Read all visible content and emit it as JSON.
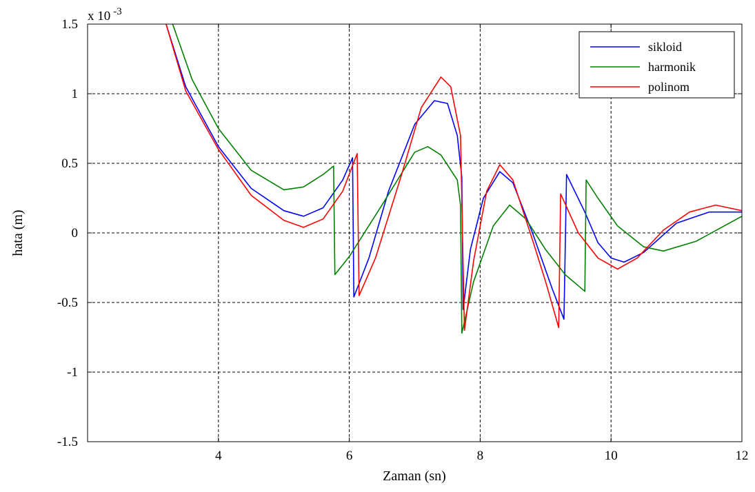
{
  "chart_data": {
    "type": "line",
    "title": "",
    "xlabel": "Zaman (sn)",
    "ylabel": "hata (m)",
    "exponent_label": "x 10",
    "exponent_power": "-3",
    "xlim": [
      2,
      12
    ],
    "ylim": [
      -1.5,
      1.5
    ],
    "grid": true,
    "legend_position": "top-right",
    "x_ticks": [
      4,
      6,
      8,
      10,
      12
    ],
    "x_tick_labels": [
      "4",
      "6",
      "8",
      "10",
      "12"
    ],
    "y_ticks": [
      -1.5,
      -1,
      -0.5,
      0,
      0.5,
      1,
      1.5
    ],
    "y_tick_labels": [
      "-1.5",
      "-1",
      "-0.5",
      "0",
      "0.5",
      "1",
      "1.5"
    ],
    "series": [
      {
        "name": "sikloid",
        "color": "#0000ff",
        "points": [
          [
            3.2,
            1.5
          ],
          [
            3.5,
            1.05
          ],
          [
            4.0,
            0.62
          ],
          [
            4.5,
            0.32
          ],
          [
            5.0,
            0.16
          ],
          [
            5.3,
            0.12
          ],
          [
            5.6,
            0.18
          ],
          [
            5.9,
            0.38
          ],
          [
            6.05,
            0.54
          ],
          [
            6.07,
            -0.46
          ],
          [
            6.3,
            -0.18
          ],
          [
            6.6,
            0.3
          ],
          [
            7.0,
            0.78
          ],
          [
            7.3,
            0.95
          ],
          [
            7.5,
            0.93
          ],
          [
            7.65,
            0.7
          ],
          [
            7.72,
            0.4
          ],
          [
            7.74,
            -0.55
          ],
          [
            7.85,
            -0.12
          ],
          [
            8.05,
            0.25
          ],
          [
            8.3,
            0.44
          ],
          [
            8.5,
            0.36
          ],
          [
            8.8,
            0.0
          ],
          [
            9.1,
            -0.4
          ],
          [
            9.28,
            -0.62
          ],
          [
            9.32,
            0.42
          ],
          [
            9.6,
            0.15
          ],
          [
            9.8,
            -0.07
          ],
          [
            10.0,
            -0.18
          ],
          [
            10.2,
            -0.21
          ],
          [
            10.5,
            -0.14
          ],
          [
            11.0,
            0.07
          ],
          [
            11.5,
            0.15
          ],
          [
            12.0,
            0.15
          ]
        ]
      },
      {
        "name": "harmonik",
        "color": "#008000",
        "points": [
          [
            3.3,
            1.5
          ],
          [
            3.6,
            1.1
          ],
          [
            4.0,
            0.75
          ],
          [
            4.5,
            0.45
          ],
          [
            5.0,
            0.31
          ],
          [
            5.3,
            0.33
          ],
          [
            5.6,
            0.42
          ],
          [
            5.76,
            0.48
          ],
          [
            5.78,
            -0.3
          ],
          [
            6.0,
            -0.17
          ],
          [
            6.5,
            0.2
          ],
          [
            7.0,
            0.58
          ],
          [
            7.2,
            0.62
          ],
          [
            7.4,
            0.56
          ],
          [
            7.65,
            0.38
          ],
          [
            7.7,
            0.2
          ],
          [
            7.72,
            -0.72
          ],
          [
            7.9,
            -0.35
          ],
          [
            8.2,
            0.05
          ],
          [
            8.45,
            0.2
          ],
          [
            8.7,
            0.1
          ],
          [
            9.0,
            -0.12
          ],
          [
            9.3,
            -0.3
          ],
          [
            9.6,
            -0.42
          ],
          [
            9.62,
            0.38
          ],
          [
            9.8,
            0.25
          ],
          [
            10.1,
            0.05
          ],
          [
            10.5,
            -0.1
          ],
          [
            10.8,
            -0.13
          ],
          [
            11.3,
            -0.06
          ],
          [
            12.0,
            0.12
          ]
        ]
      },
      {
        "name": "polinom",
        "color": "#ff0000",
        "points": [
          [
            3.2,
            1.5
          ],
          [
            3.5,
            1.02
          ],
          [
            4.0,
            0.6
          ],
          [
            4.5,
            0.27
          ],
          [
            5.0,
            0.09
          ],
          [
            5.3,
            0.04
          ],
          [
            5.6,
            0.1
          ],
          [
            5.9,
            0.3
          ],
          [
            6.12,
            0.57
          ],
          [
            6.15,
            -0.45
          ],
          [
            6.4,
            -0.18
          ],
          [
            6.8,
            0.42
          ],
          [
            7.1,
            0.9
          ],
          [
            7.4,
            1.12
          ],
          [
            7.55,
            1.05
          ],
          [
            7.7,
            0.7
          ],
          [
            7.76,
            -0.7
          ],
          [
            7.9,
            -0.2
          ],
          [
            8.1,
            0.3
          ],
          [
            8.3,
            0.49
          ],
          [
            8.5,
            0.38
          ],
          [
            8.8,
            -0.05
          ],
          [
            9.0,
            -0.35
          ],
          [
            9.2,
            -0.68
          ],
          [
            9.23,
            0.28
          ],
          [
            9.5,
            0.0
          ],
          [
            9.8,
            -0.18
          ],
          [
            10.1,
            -0.26
          ],
          [
            10.4,
            -0.18
          ],
          [
            10.8,
            0.02
          ],
          [
            11.2,
            0.15
          ],
          [
            11.6,
            0.2
          ],
          [
            12.0,
            0.16
          ]
        ]
      }
    ]
  }
}
